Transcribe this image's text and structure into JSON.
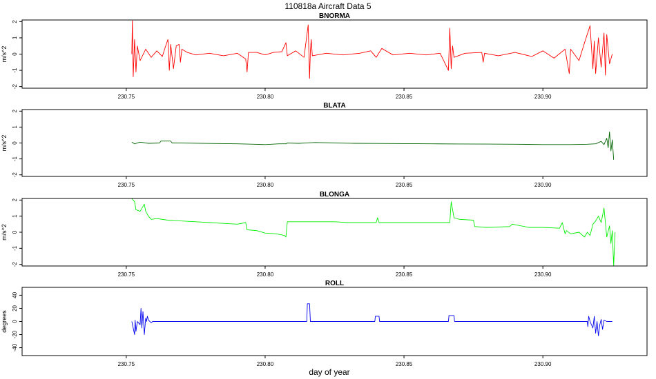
{
  "figure": {
    "title": "110818a   Aircraft Data 5",
    "xlabel": "day of year"
  },
  "colors": {
    "bnorma": "#ff0000",
    "blata": "#006400",
    "blonga": "#00ee00",
    "roll": "#0000ee",
    "axes": "#000000"
  },
  "chart_data": [
    {
      "type": "line",
      "title": "BNORMA",
      "ylabel": "m/s^2",
      "xlabel": "",
      "xlim": [
        230.7125,
        230.9375
      ],
      "ylim": [
        -2.1,
        2.1
      ],
      "xticks": [
        230.75,
        230.8,
        230.85,
        230.9
      ],
      "xtick_labels": [
        "230.75",
        "230.80",
        "230.85",
        "230.90"
      ],
      "yticks": [
        -2,
        -1,
        0,
        1,
        2
      ],
      "ytick_labels": [
        "-2",
        "-1",
        "0",
        "1",
        "2"
      ],
      "series": [
        {
          "color": "#ff0000",
          "x": [
            230.752,
            230.7522,
            230.7525,
            230.753,
            230.7535,
            230.754,
            230.755,
            230.757,
            230.759,
            230.761,
            230.763,
            230.764,
            230.765,
            230.7655,
            230.766,
            230.767,
            230.768,
            230.769,
            230.7695,
            230.77,
            230.772,
            230.775,
            230.78,
            230.785,
            230.79,
            230.793,
            230.7935,
            230.794,
            230.797,
            230.8,
            230.803,
            230.806,
            230.8075,
            230.808,
            230.811,
            230.814,
            230.8155,
            230.816,
            230.8163,
            230.8166,
            230.817,
            230.822,
            230.828,
            230.834,
            230.838,
            230.84,
            230.842,
            230.846,
            230.852,
            230.858,
            230.863,
            230.866,
            230.8665,
            230.867,
            230.8675,
            230.868,
            230.872,
            230.878,
            230.8785,
            230.879,
            230.884,
            230.89,
            230.896,
            230.9,
            230.904,
            230.908,
            230.9095,
            230.91,
            230.913,
            230.915,
            230.917,
            230.918,
            230.9185,
            230.919,
            230.92,
            230.921,
            230.922,
            230.9225,
            230.923,
            230.924,
            230.925
          ],
          "y": [
            0,
            2.05,
            -1.4,
            0.9,
            -1.1,
            0.5,
            -0.4,
            0.3,
            -0.2,
            0.2,
            -0.15,
            0.4,
            0.9,
            -1.0,
            0.6,
            -0.9,
            0.5,
            0.6,
            -0.5,
            0.3,
            0.1,
            -0.05,
            0.05,
            -0.1,
            0.05,
            -0.3,
            -1.1,
            0.1,
            0.1,
            -0.05,
            0.1,
            0.15,
            0.7,
            -0.1,
            0.2,
            -0.2,
            1.8,
            -1.5,
            0.2,
            0.9,
            -0.1,
            0.05,
            -0.05,
            0.05,
            0.2,
            -0.2,
            0.35,
            -0.05,
            0.05,
            -0.05,
            0.05,
            -1.0,
            1.6,
            -0.9,
            0.5,
            -0.2,
            0.05,
            0.1,
            -0.5,
            0.05,
            -0.1,
            0.1,
            -0.15,
            0.2,
            -0.25,
            0.3,
            -1.2,
            0.3,
            -0.4,
            0.7,
            1.75,
            -0.9,
            0.8,
            -1.2,
            1.0,
            -0.8,
            1.3,
            -1.3,
            1.2,
            -0.6,
            0
          ]
        }
      ]
    },
    {
      "type": "line",
      "title": "BLATA",
      "ylabel": "m/s^2",
      "xlabel": "",
      "xlim": [
        230.7125,
        230.9375
      ],
      "ylim": [
        -2.1,
        2.1
      ],
      "xticks": [
        230.75,
        230.8,
        230.85,
        230.9
      ],
      "xtick_labels": [
        "230.75",
        "230.80",
        "230.85",
        "230.90"
      ],
      "yticks": [
        -2,
        -1,
        0,
        1,
        2
      ],
      "ytick_labels": [
        "-2",
        "-1",
        "0",
        "1",
        "2"
      ],
      "series": [
        {
          "color": "#006400",
          "x": [
            230.752,
            230.753,
            230.755,
            230.758,
            230.762,
            230.7625,
            230.766,
            230.7665,
            230.77,
            230.78,
            230.79,
            230.796,
            230.8,
            230.805,
            230.8075,
            230.808,
            230.812,
            230.818,
            230.826,
            230.832,
            230.84,
            230.85,
            230.86,
            230.87,
            230.88,
            230.89,
            230.9,
            230.91,
            230.916,
            230.919,
            230.921,
            230.922,
            230.923,
            230.9235,
            230.924,
            230.9245,
            230.925,
            230.9255
          ],
          "y": [
            0.05,
            -0.05,
            0.05,
            -0.02,
            0.0,
            0.12,
            0.12,
            0.0,
            0.0,
            -0.03,
            -0.05,
            -0.08,
            -0.1,
            -0.05,
            -0.05,
            0.0,
            -0.02,
            0.03,
            0.0,
            -0.02,
            -0.03,
            -0.04,
            -0.05,
            -0.06,
            -0.07,
            -0.08,
            -0.1,
            -0.1,
            -0.08,
            -0.05,
            0.1,
            -0.1,
            0.3,
            -0.3,
            0.7,
            -0.5,
            0.2,
            -1.05
          ]
        }
      ]
    },
    {
      "type": "line",
      "title": "BLONGA",
      "ylabel": "m/s^2",
      "xlabel": "",
      "xlim": [
        230.7125,
        230.9375
      ],
      "ylim": [
        -2.1,
        2.1
      ],
      "xticks": [
        230.75,
        230.8,
        230.85,
        230.9
      ],
      "xtick_labels": [
        "230.75",
        "230.80",
        "230.85",
        "230.90"
      ],
      "yticks": [
        -2,
        -1,
        0,
        1,
        2
      ],
      "ytick_labels": [
        "-2",
        "-1",
        "0",
        "1",
        "2"
      ],
      "series": [
        {
          "color": "#00ee00",
          "x": [
            230.752,
            230.753,
            230.7535,
            230.755,
            230.7565,
            230.757,
            230.758,
            230.759,
            230.761,
            230.765,
            230.77,
            230.775,
            230.78,
            230.785,
            230.79,
            230.793,
            230.7935,
            230.797,
            230.8,
            230.804,
            230.807,
            230.8075,
            230.8078,
            230.808,
            230.815,
            230.82,
            230.825,
            230.83,
            230.835,
            230.84,
            230.8405,
            230.841,
            230.85,
            230.86,
            230.8665,
            230.867,
            230.868,
            230.87,
            230.875,
            230.8755,
            230.88,
            230.888,
            230.889,
            230.895,
            230.9,
            230.906,
            230.907,
            230.908,
            230.9085,
            230.91,
            230.913,
            230.915,
            230.916,
            230.917,
            230.918,
            230.919,
            230.92,
            230.921,
            230.922,
            230.923,
            230.924,
            230.9245,
            230.925,
            230.9255,
            230.926
          ],
          "y": [
            2.1,
            1.9,
            1.4,
            1.3,
            1.75,
            1.3,
            1.0,
            0.8,
            0.85,
            0.75,
            0.7,
            0.65,
            0.6,
            0.55,
            0.5,
            0.6,
            0.15,
            0.1,
            -0.05,
            -0.1,
            -0.2,
            -0.3,
            0.3,
            0.65,
            0.65,
            0.65,
            0.65,
            0.6,
            0.6,
            0.6,
            0.9,
            0.6,
            0.6,
            0.6,
            0.6,
            1.9,
            0.9,
            0.8,
            0.75,
            0.35,
            0.3,
            0.35,
            0.5,
            0.3,
            0.3,
            0.25,
            0.6,
            -0.1,
            0.1,
            -0.1,
            0.0,
            -0.3,
            0.0,
            -0.2,
            0.5,
            0.7,
            1.0,
            0.6,
            1.5,
            -0.3,
            0.4,
            -0.7,
            0.1,
            -2.1,
            0.0
          ]
        }
      ]
    },
    {
      "type": "line",
      "title": "ROLL",
      "ylabel": "degrees",
      "xlabel": "",
      "xlim": [
        230.7125,
        230.9375
      ],
      "ylim": [
        -52,
        52
      ],
      "xticks": [
        230.75,
        230.8,
        230.85,
        230.9
      ],
      "xtick_labels": [
        "230.75",
        "230.80",
        "230.85",
        "230.90"
      ],
      "yticks": [
        -40,
        -20,
        0,
        20,
        40
      ],
      "ytick_labels": [
        "-40",
        "-20",
        "0",
        "20",
        "40"
      ],
      "series": [
        {
          "color": "#0000ee",
          "x": [
            230.752,
            230.753,
            230.7532,
            230.7535,
            230.754,
            230.755,
            230.7553,
            230.7556,
            230.756,
            230.7565,
            230.757,
            230.7573,
            230.7576,
            230.758,
            230.759,
            230.7595,
            230.76,
            230.78,
            230.8,
            230.815,
            230.8152,
            230.816,
            230.8163,
            230.8165,
            230.825,
            230.8395,
            230.8397,
            230.841,
            230.8412,
            230.855,
            230.866,
            230.8662,
            230.868,
            230.8682,
            230.88,
            230.9,
            230.91,
            230.916,
            230.9162,
            230.9165,
            230.917,
            230.918,
            230.9185,
            230.919,
            230.9195,
            230.92,
            230.9205,
            230.921,
            230.9215,
            230.922,
            230.923,
            230.924,
            230.925
          ],
          "y": [
            0,
            -20,
            2,
            -15,
            0,
            -5,
            20,
            -10,
            15,
            -20,
            5,
            0,
            8,
            2,
            -2,
            0,
            0,
            0,
            0,
            0,
            27,
            27,
            0,
            0,
            0,
            0,
            8,
            8,
            0,
            0,
            0,
            9,
            9,
            0,
            0,
            0,
            0,
            0,
            -8,
            8,
            0,
            -10,
            8,
            -18,
            0,
            -22,
            -5,
            3,
            -12,
            2,
            0,
            0,
            0
          ]
        }
      ]
    }
  ]
}
